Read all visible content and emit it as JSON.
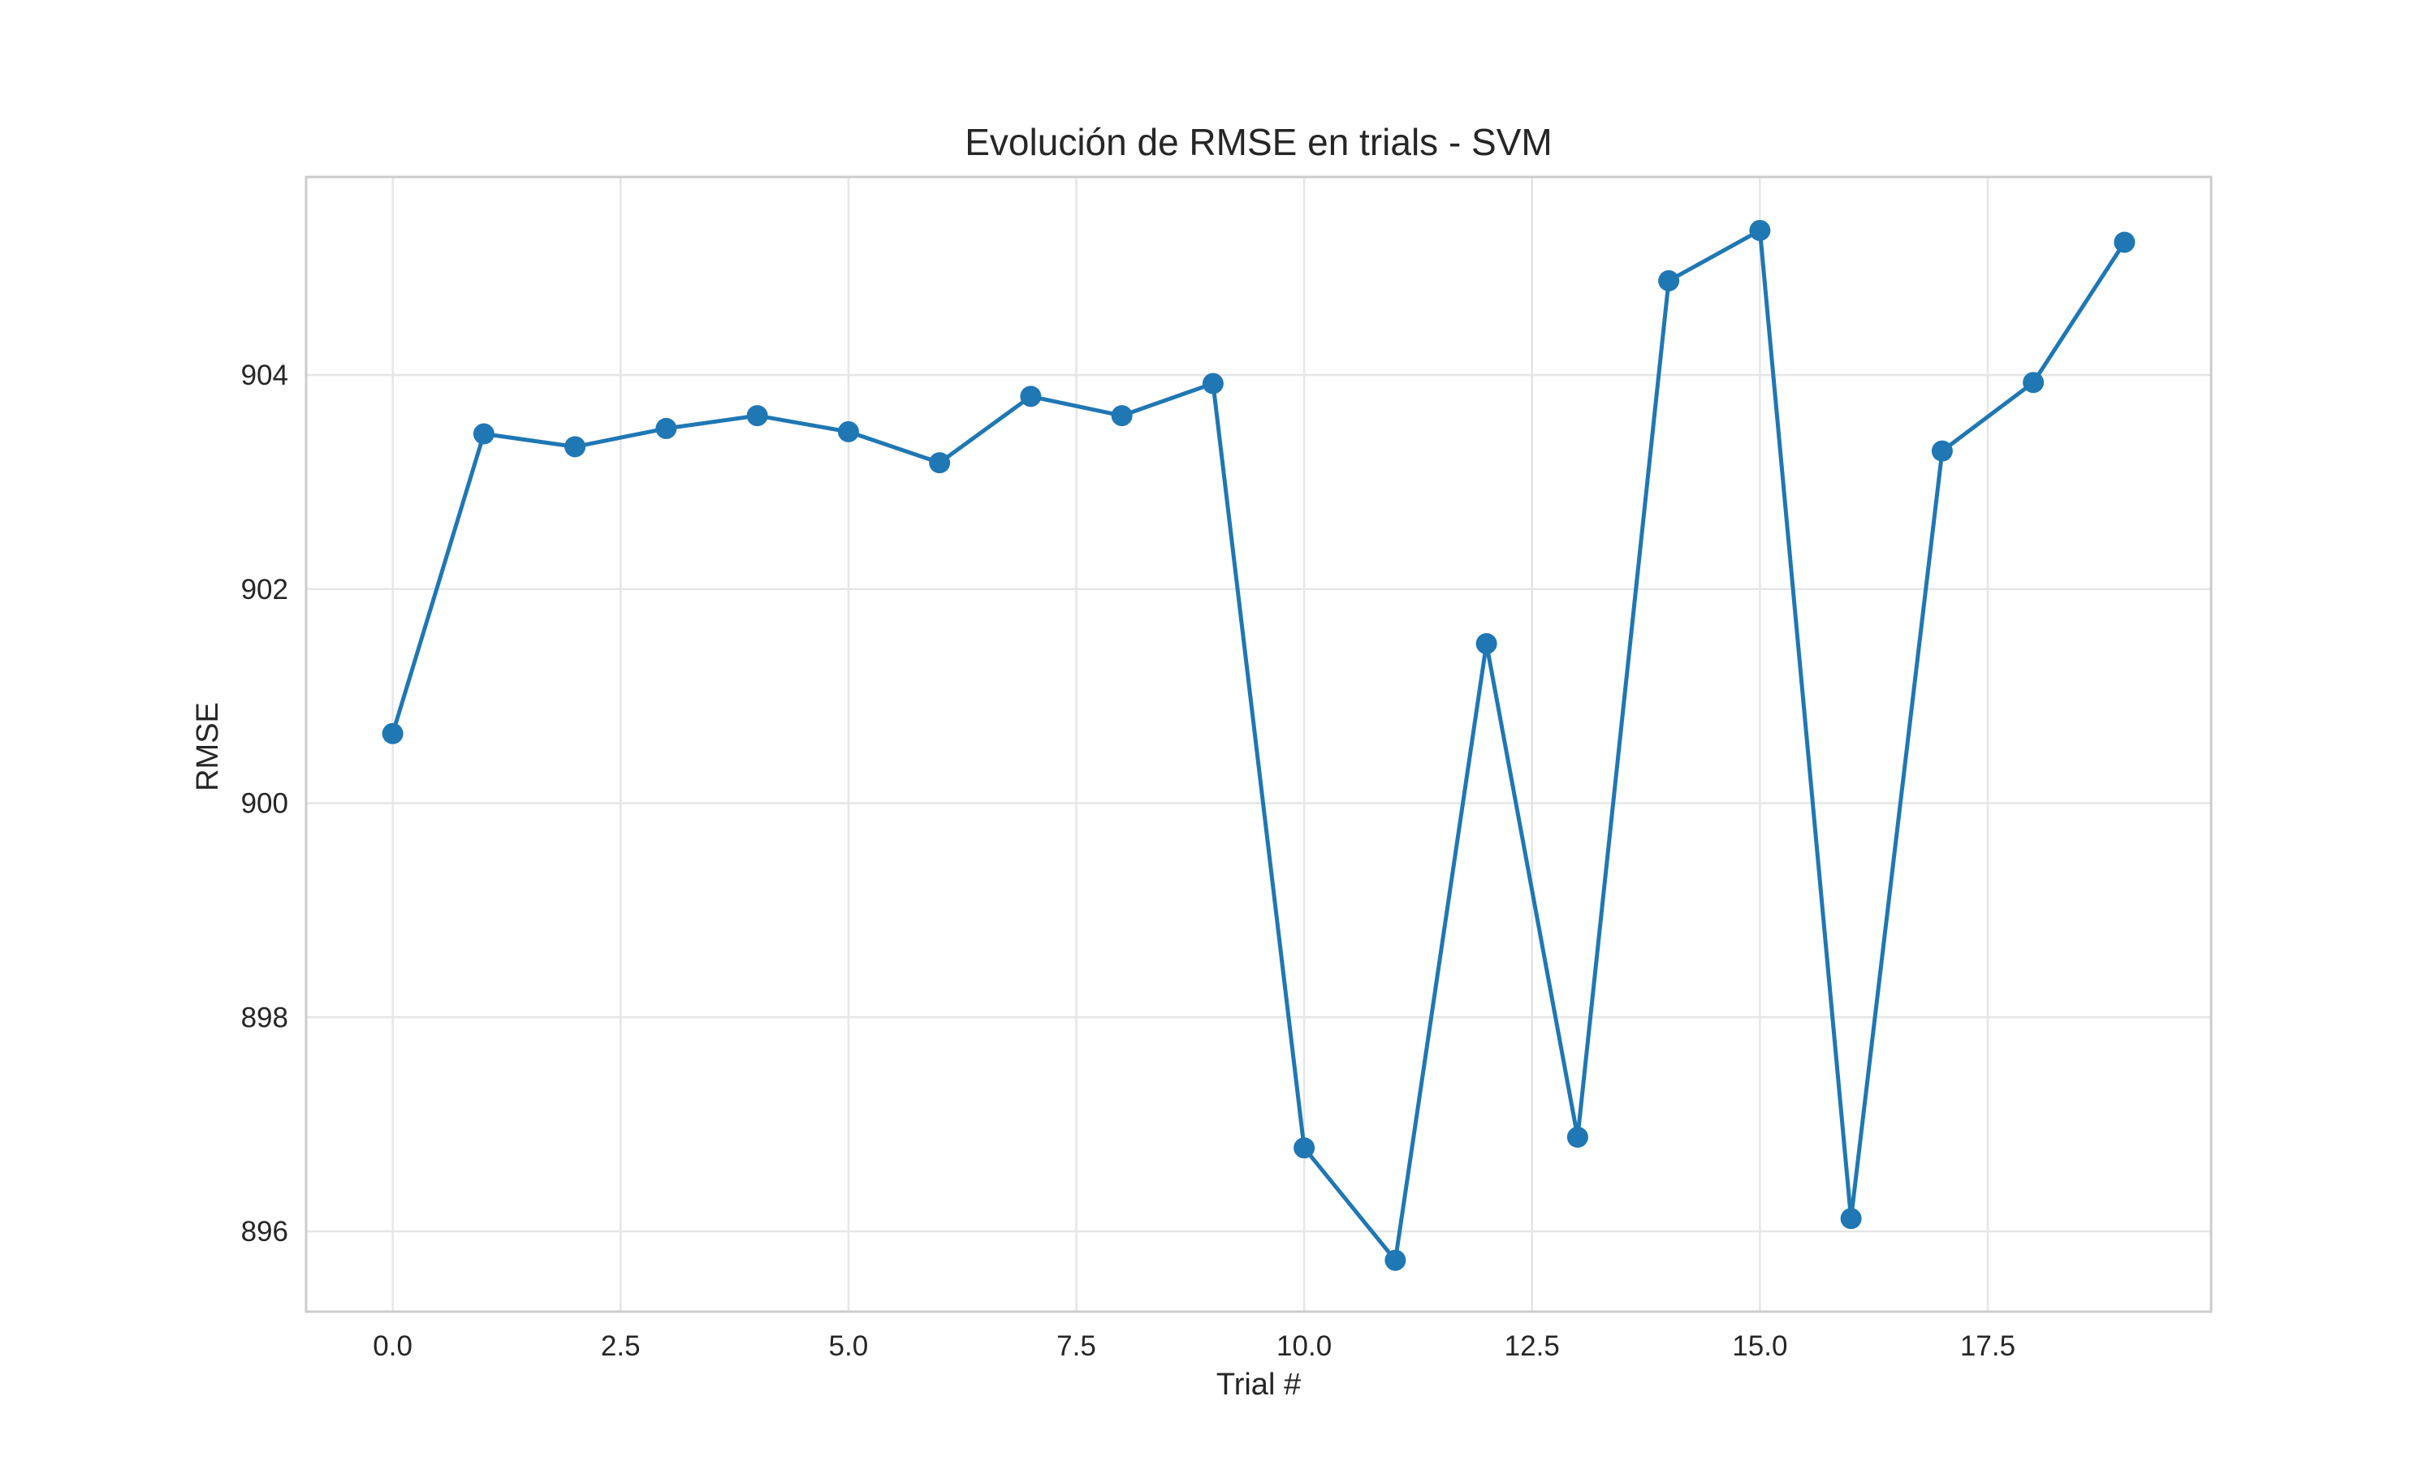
{
  "chart_data": {
    "type": "line",
    "title": "Evolución de RMSE en trials - SVM",
    "xlabel": "Trial #",
    "ylabel": "RMSE",
    "xlim": [
      -0.95,
      19.95
    ],
    "ylim": [
      895.25,
      905.85
    ],
    "xticks": [
      0.0,
      2.5,
      5.0,
      7.5,
      10.0,
      12.5,
      15.0,
      17.5
    ],
    "xtick_labels": [
      "0.0",
      "2.5",
      "5.0",
      "7.5",
      "10.0",
      "12.5",
      "15.0",
      "17.5"
    ],
    "yticks": [
      896,
      898,
      900,
      902,
      904
    ],
    "ytick_labels": [
      "896",
      "898",
      "900",
      "902",
      "904"
    ],
    "grid": true,
    "marker": "circle",
    "series": [
      {
        "color": "#1f77b4",
        "x": [
          0,
          1,
          2,
          3,
          4,
          5,
          6,
          7,
          8,
          9,
          10,
          11,
          12,
          13,
          14,
          15,
          16,
          17,
          18,
          19
        ],
        "values": [
          900.65,
          903.45,
          903.33,
          903.5,
          903.62,
          903.47,
          903.18,
          903.8,
          903.62,
          903.92,
          896.78,
          895.73,
          901.49,
          896.88,
          904.88,
          905.35,
          896.12,
          903.29,
          903.93,
          905.24
        ]
      }
    ]
  }
}
